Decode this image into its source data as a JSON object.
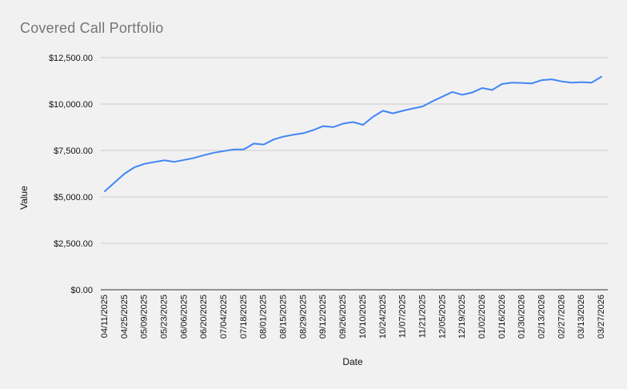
{
  "colors": {
    "background": "#f1f1f2",
    "title_text": "#757575",
    "axis_text": "#111111",
    "gridline": "#cccccc",
    "axis_line": "#333333",
    "line": "#4285f4"
  },
  "chart_data": {
    "type": "line",
    "title": "Covered Call Portfolio",
    "xlabel": "Date",
    "ylabel": "Value",
    "legend": "none",
    "grid": true,
    "ylim": [
      0,
      12500
    ],
    "x_label_every": 2,
    "y_ticks": [
      {
        "value": 0,
        "label": "$0.00"
      },
      {
        "value": 2500,
        "label": "$2,500.00"
      },
      {
        "value": 5000,
        "label": "$5,000.00"
      },
      {
        "value": 7500,
        "label": "$7,500.00"
      },
      {
        "value": 10000,
        "label": "$10,000.00"
      },
      {
        "value": 12500,
        "label": "$12,500.00"
      }
    ],
    "x": [
      "04/11/2025",
      "04/18/2025",
      "04/25/2025",
      "05/02/2025",
      "05/09/2025",
      "05/16/2025",
      "05/23/2025",
      "05/30/2025",
      "06/06/2025",
      "06/13/2025",
      "06/20/2025",
      "06/27/2025",
      "07/04/2025",
      "07/11/2025",
      "07/18/2025",
      "07/25/2025",
      "08/01/2025",
      "08/08/2025",
      "08/15/2025",
      "08/22/2025",
      "08/29/2025",
      "09/05/2025",
      "09/12/2025",
      "09/19/2025",
      "09/26/2025",
      "10/03/2025",
      "10/10/2025",
      "10/17/2025",
      "10/24/2025",
      "10/31/2025",
      "11/07/2025",
      "11/14/2025",
      "11/21/2025",
      "11/28/2025",
      "12/05/2025",
      "12/12/2025",
      "12/19/2025",
      "12/26/2025",
      "01/02/2026",
      "01/09/2026",
      "01/16/2026",
      "01/23/2026",
      "01/30/2026",
      "02/06/2026",
      "02/13/2026",
      "02/20/2026",
      "02/27/2026",
      "03/06/2026",
      "03/13/2026",
      "03/20/2026",
      "03/27/2026"
    ],
    "values": [
      5300,
      5780,
      6250,
      6600,
      6780,
      6880,
      6970,
      6890,
      6990,
      7100,
      7250,
      7380,
      7470,
      7550,
      7560,
      7870,
      7820,
      8090,
      8250,
      8350,
      8430,
      8600,
      8810,
      8760,
      8950,
      9030,
      8880,
      9310,
      9640,
      9500,
      9640,
      9760,
      9870,
      10150,
      10400,
      10650,
      10500,
      10620,
      10860,
      10760,
      11080,
      11150,
      11140,
      11110,
      11290,
      11330,
      11220,
      11150,
      11180,
      11150,
      11470
    ]
  }
}
